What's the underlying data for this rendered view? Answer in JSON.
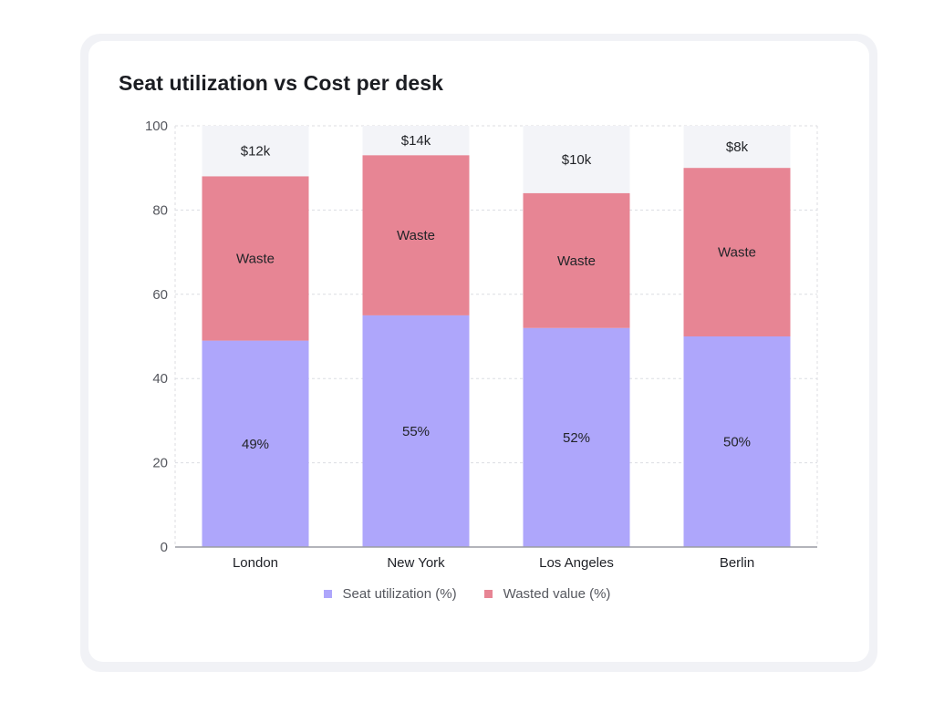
{
  "chart_data": {
    "type": "bar",
    "stacked": true,
    "title": "Seat utilization vs Cost per desk",
    "xlabel": "",
    "ylabel": "",
    "ylim": [
      0,
      100
    ],
    "yticks": [
      0,
      20,
      40,
      60,
      80,
      100
    ],
    "grid": true,
    "categories": [
      "London",
      "New York",
      "Los Angeles",
      "Berlin"
    ],
    "series": [
      {
        "name": "Seat utilization (%)",
        "color": "#aea6fb",
        "values": [
          49,
          55,
          52,
          50
        ],
        "labels": [
          "49%",
          "55%",
          "52%",
          "50%"
        ]
      },
      {
        "name": "Wasted value (%)",
        "color": "#e78594",
        "values": [
          39,
          38,
          32,
          40
        ],
        "labels": [
          "Waste",
          "Waste",
          "Waste",
          "Waste"
        ]
      }
    ],
    "background_bar": {
      "value": 100,
      "color": "#f3f4f8"
    },
    "cost_labels": [
      "$12k",
      "$14k",
      "$10k",
      "$8k"
    ],
    "legend_position": "bottom"
  }
}
